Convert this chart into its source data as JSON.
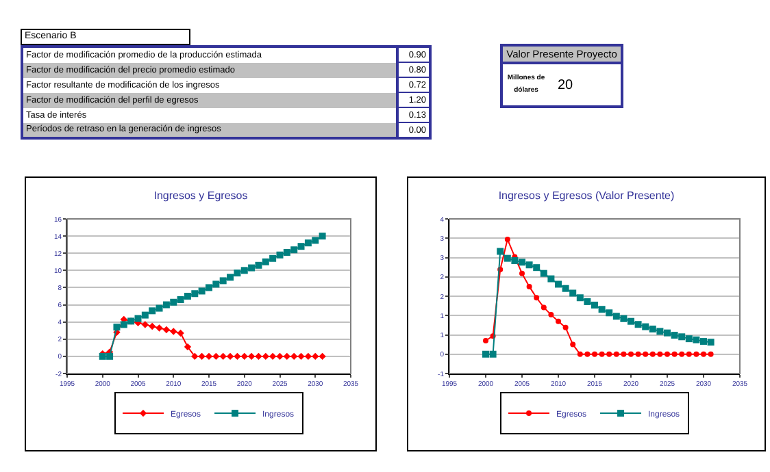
{
  "chart_data": [
    {
      "type": "other",
      "title": "Escenario B",
      "categories": [
        "Factor de modificación promedio de la producción estimada",
        "Factor de modificación del precio promedio estimado",
        "Factor resultante de modificación de los ingresos",
        "Factor de modificación del perfil de egresos",
        "Tasa de interés",
        "Períodos de retraso en la generación de ingresos"
      ],
      "annotations": [
        "0.90",
        "0.80",
        "0.72",
        "1.20",
        "0.13",
        "0.00"
      ]
    },
    {
      "type": "other",
      "title": "Valor Presente Proyecto",
      "annotations": [
        "Millones de dólares",
        "20"
      ]
    },
    {
      "type": "line",
      "title": "Ingresos y Egresos",
      "x": [
        2000,
        2001,
        2002,
        2003,
        2004,
        2005,
        2006,
        2007,
        2008,
        2009,
        2010,
        2011,
        2012,
        2013,
        2014,
        2015,
        2016,
        2017,
        2018,
        2019,
        2020,
        2021,
        2022,
        2023,
        2024,
        2025,
        2026,
        2027,
        2028,
        2029,
        2030,
        2031
      ],
      "xlim": [
        1995,
        2035
      ],
      "xticks": [
        1995,
        2000,
        2005,
        2010,
        2015,
        2020,
        2025,
        2030,
        2035
      ],
      "ylim": [
        -2,
        16
      ],
      "yticks": [
        -2,
        0,
        2,
        4,
        6,
        8,
        10,
        12,
        14,
        16
      ],
      "grid": "y",
      "legend": "bottom",
      "series": [
        {
          "name": "Egresos",
          "color": "#ff0000",
          "marker": "diamond",
          "values": [
            0.3,
            0.5,
            2.8,
            4.3,
            4.1,
            3.9,
            3.7,
            3.5,
            3.3,
            3.1,
            2.9,
            2.7,
            1.1,
            0,
            0,
            0,
            0,
            0,
            0,
            0,
            0,
            0,
            0,
            0,
            0,
            0,
            0,
            0,
            0,
            0,
            0,
            0
          ]
        },
        {
          "name": "Ingresos",
          "color": "#008080",
          "marker": "square",
          "values": [
            0,
            0,
            3.4,
            3.7,
            4.1,
            4.4,
            4.8,
            5.3,
            5.6,
            6.0,
            6.3,
            6.6,
            7.0,
            7.3,
            7.6,
            8.0,
            8.4,
            8.8,
            9.2,
            9.7,
            10.0,
            10.3,
            10.6,
            11.0,
            11.4,
            11.8,
            12.1,
            12.4,
            12.8,
            13.2,
            13.5,
            14.0
          ]
        }
      ]
    },
    {
      "type": "line",
      "title": "Ingresos y Egresos (Valor Presente)",
      "x": [
        2000,
        2001,
        2002,
        2003,
        2004,
        2005,
        2006,
        2007,
        2008,
        2009,
        2010,
        2011,
        2012,
        2013,
        2014,
        2015,
        2016,
        2017,
        2018,
        2019,
        2020,
        2021,
        2022,
        2023,
        2024,
        2025,
        2026,
        2027,
        2028,
        2029,
        2030,
        2031
      ],
      "xlim": [
        1995,
        2035
      ],
      "xticks": [
        1995,
        2000,
        2005,
        2010,
        2015,
        2020,
        2025,
        2030,
        2035
      ],
      "ylim": [
        -0.5,
        3.5
      ],
      "yticks": [
        {
          "value": -0.5,
          "label": "-1"
        },
        0,
        {
          "value": 0.5,
          "label": "1"
        },
        1,
        {
          "value": 1.5,
          "label": "2"
        },
        2,
        {
          "value": 2.5,
          "label": "3"
        },
        3,
        {
          "value": 3.5,
          "label": "4"
        }
      ],
      "grid": "y",
      "legend": "bottom",
      "series": [
        {
          "name": "Egresos",
          "color": "#ff0000",
          "marker": "circle",
          "values": [
            0.35,
            0.47,
            2.19,
            2.97,
            2.52,
            2.09,
            1.75,
            1.46,
            1.21,
            1.02,
            0.85,
            0.69,
            0.25,
            0,
            0,
            0,
            0,
            0,
            0,
            0,
            0,
            0,
            0,
            0,
            0,
            0,
            0,
            0,
            0,
            0,
            0,
            0
          ]
        },
        {
          "name": "Ingresos",
          "color": "#008080",
          "marker": "square",
          "values": [
            0,
            0,
            2.66,
            2.48,
            2.42,
            2.38,
            2.31,
            2.24,
            2.09,
            1.95,
            1.81,
            1.7,
            1.58,
            1.46,
            1.36,
            1.27,
            1.16,
            1.07,
            0.98,
            0.92,
            0.85,
            0.77,
            0.71,
            0.65,
            0.59,
            0.55,
            0.49,
            0.45,
            0.4,
            0.37,
            0.33,
            0.31
          ]
        }
      ]
    }
  ]
}
